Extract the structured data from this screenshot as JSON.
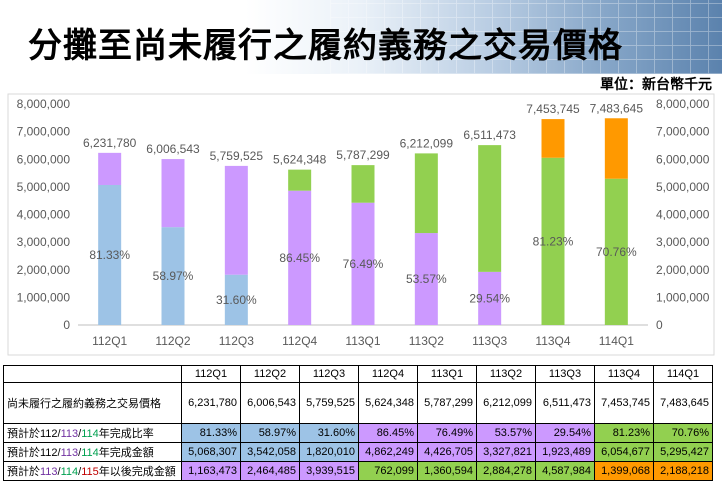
{
  "header": {
    "title": "分攤至尚未履行之履約義務之交易價格",
    "unit": "單位：新台幣千元"
  },
  "colors": {
    "blue": "#9dc3e6",
    "purple": "#cc99ff",
    "green": "#92d050",
    "orange": "#ff9900"
  },
  "chart_data": {
    "type": "bar",
    "stacked": true,
    "categories": [
      "112Q1",
      "112Q2",
      "112Q3",
      "112Q4",
      "113Q1",
      "113Q2",
      "113Q3",
      "113Q4",
      "114Q1"
    ],
    "totals": [
      6231780,
      6006543,
      5759525,
      5624348,
      5787299,
      6212099,
      6511473,
      7453745,
      7483645
    ],
    "total_labels": [
      "6,231,780",
      "6,006,543",
      "5,759,525",
      "5,624,348",
      "5,787,299",
      "6,212,099",
      "6,511,473",
      "7,453,745",
      "7,483,645"
    ],
    "series": [
      {
        "name": "預計於當年度完成金額",
        "values": [
          5068307,
          3542058,
          1820010,
          4862249,
          4426705,
          3327821,
          1923489,
          6054677,
          5295427
        ],
        "colors": [
          "blue",
          "blue",
          "blue",
          "purple",
          "purple",
          "purple",
          "purple",
          "green",
          "green"
        ]
      },
      {
        "name": "預計於以後年度完成金額",
        "values": [
          1163473,
          2464485,
          3939515,
          762099,
          1360594,
          2884278,
          4587984,
          1399068,
          2188218
        ],
        "colors": [
          "purple",
          "purple",
          "purple",
          "green",
          "green",
          "green",
          "green",
          "orange",
          "orange"
        ]
      }
    ],
    "pct_labels": [
      "81.33%",
      "58.97%",
      "31.60%",
      "86.45%",
      "76.49%",
      "53.57%",
      "29.54%",
      "81.23%",
      "70.76%"
    ],
    "ylim": [
      0,
      8000000
    ],
    "yticks": [
      "0",
      "1,000,000",
      "2,000,000",
      "3,000,000",
      "4,000,000",
      "5,000,000",
      "6,000,000",
      "7,000,000",
      "8,000,000"
    ],
    "ytick_values": [
      0,
      1000000,
      2000000,
      3000000,
      4000000,
      5000000,
      6000000,
      7000000,
      8000000
    ],
    "secondary_axis": true
  },
  "table": {
    "headers": [
      "112Q1",
      "112Q2",
      "112Q3",
      "112Q4",
      "113Q1",
      "113Q2",
      "113Q3",
      "113Q4",
      "114Q1"
    ],
    "row_price": {
      "label": "尚未履行之履約義務之交易價格",
      "values": [
        "6,231,780",
        "6,006,543",
        "5,759,525",
        "5,624,348",
        "5,787,299",
        "6,212,099",
        "6,511,473",
        "7,453,745",
        "7,483,645"
      ]
    },
    "row_pct": {
      "label_prefix": "預計於",
      "label_y1": "112",
      "sep1": "/",
      "label_y2": "113",
      "sep2": "/",
      "label_y3": "114",
      "label_suffix": "年完成比率",
      "values": [
        "81.33%",
        "58.97%",
        "31.60%",
        "86.45%",
        "76.49%",
        "53.57%",
        "29.54%",
        "81.23%",
        "70.76%"
      ]
    },
    "row_amt": {
      "label_prefix": "預計於",
      "label_y1": "112",
      "sep1": "/",
      "label_y2": "113",
      "sep2": "/",
      "label_y3": "114",
      "label_suffix": "年完成金額",
      "values": [
        "5,068,307",
        "3,542,058",
        "1,820,010",
        "4,862,249",
        "4,426,705",
        "3,327,821",
        "1,923,489",
        "6,054,677",
        "5,295,427"
      ]
    },
    "row_later": {
      "label_prefix": "預計於",
      "label_y1": "113",
      "sep1": "/",
      "label_y2": "114",
      "sep2": "/",
      "label_y3": "115",
      "label_suffix": "年以後完成金額",
      "values": [
        "1,163,473",
        "2,464,485",
        "3,939,515",
        "762,099",
        "1,360,594",
        "2,884,278",
        "4,587,984",
        "1,399,068",
        "2,188,218"
      ]
    }
  }
}
